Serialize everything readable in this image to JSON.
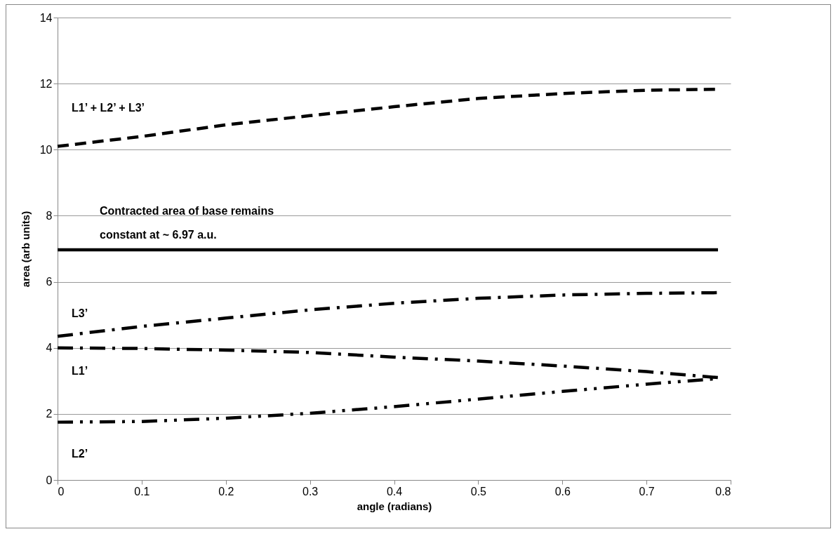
{
  "chart_data": {
    "type": "line",
    "xlabel": "angle (radians)",
    "ylabel": "area (arb units)",
    "x": [
      0,
      0.1,
      0.2,
      0.3,
      0.4,
      0.5,
      0.6,
      0.7,
      0.785
    ],
    "xlim": [
      0,
      0.8
    ],
    "xticks": [
      0,
      0.1,
      0.2,
      0.3,
      0.4,
      0.5,
      0.6,
      0.7,
      0.8
    ],
    "ylim": [
      0,
      14
    ],
    "yticks": [
      0,
      2,
      4,
      6,
      8,
      10,
      12,
      14
    ],
    "grid": "y",
    "marker": "none",
    "series": [
      {
        "name": "L1’ + L2’ + L3’",
        "color": "#000000",
        "line_style": "dashed",
        "values": [
          10.1,
          10.4,
          10.75,
          11.03,
          11.3,
          11.55,
          11.7,
          11.8,
          11.83
        ]
      },
      {
        "color": "#000000",
        "line_style": "solid",
        "values": [
          6.97,
          6.97,
          6.97,
          6.97,
          6.97,
          6.97,
          6.97,
          6.97,
          6.97
        ]
      },
      {
        "name": "L3’",
        "color": "#000000",
        "line_style": "dashdot",
        "values": [
          4.35,
          4.65,
          4.9,
          5.15,
          5.35,
          5.5,
          5.6,
          5.65,
          5.67
        ]
      },
      {
        "name": "L1’",
        "color": "#000000",
        "line_style": "dashdot",
        "values": [
          4.0,
          3.98,
          3.93,
          3.86,
          3.72,
          3.6,
          3.45,
          3.28,
          3.1
        ]
      },
      {
        "name": "L2’",
        "color": "#000000",
        "line_style": "dashdotdot",
        "values": [
          1.75,
          1.77,
          1.87,
          2.02,
          2.22,
          2.45,
          2.68,
          2.9,
          3.07
        ]
      }
    ],
    "annotations": [
      "Contracted area of base remains constant at ~ 6.97 a.u."
    ]
  }
}
